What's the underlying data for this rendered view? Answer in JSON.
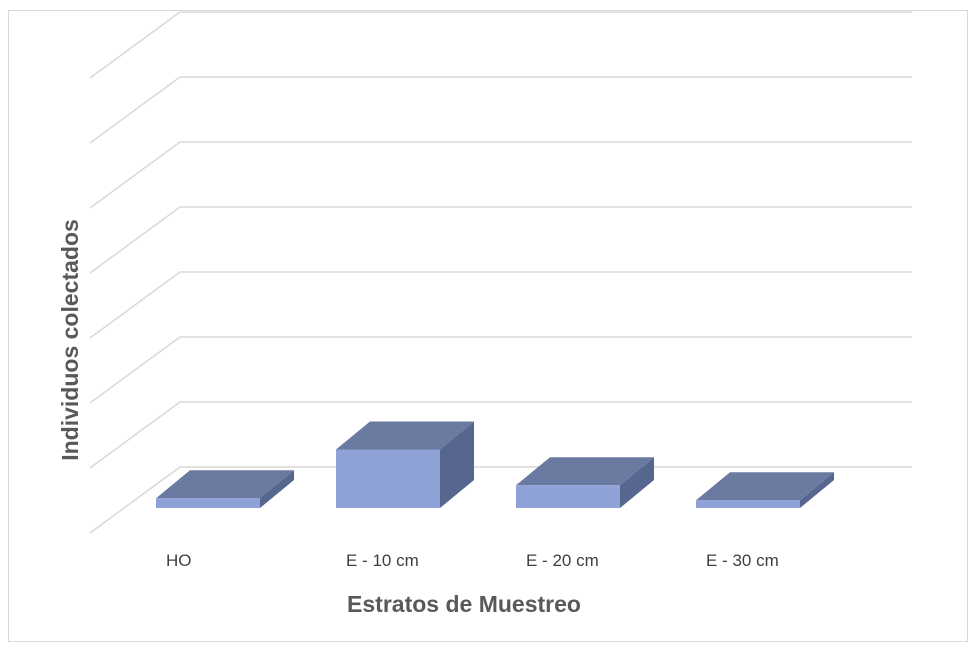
{
  "chart_data": {
    "type": "bar",
    "style": "3d-column",
    "categories": [
      "HO",
      "E - 10 cm",
      "E - 20 cm",
      "E - 30 cm"
    ],
    "series": [
      {
        "values": [
          1.5,
          9,
          3.5,
          1.2
        ]
      }
    ],
    "xlabel": "Estratos de Muestreo",
    "ylabel": "Individuos colectados",
    "ylim": [
      0,
      70
    ],
    "ytick_step": 10,
    "gridlines": true,
    "legend": "none",
    "colors": {
      "bar_front": "#8fa2d8",
      "bar_top": "#6b7aa1",
      "bar_side": "#56668f",
      "gridline": "#d9d9d9",
      "frame": "#d9d9d9"
    }
  }
}
